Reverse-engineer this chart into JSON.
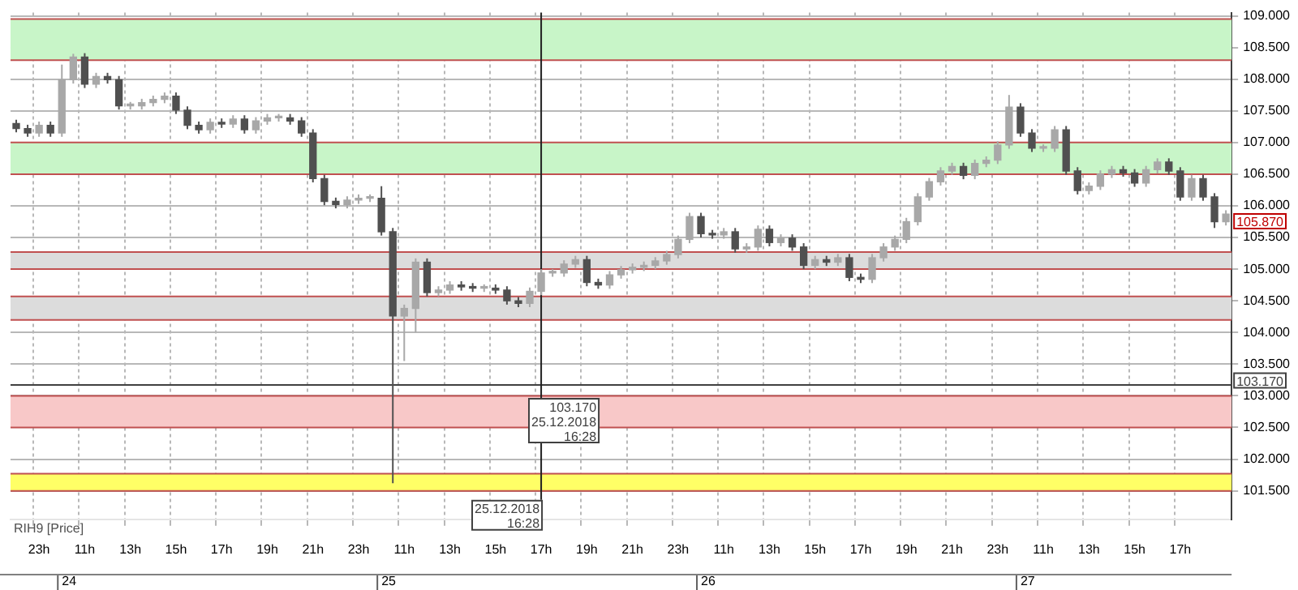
{
  "chart_data": {
    "type": "candlestick",
    "categories": [
      null,
      null,
      "23h",
      null,
      null,
      null,
      "11h",
      null,
      null,
      null,
      "13h",
      null,
      null,
      null,
      "15h",
      null,
      null,
      null,
      "17h",
      null,
      null,
      null,
      "19h",
      null,
      null,
      null,
      "21h",
      null,
      null,
      null,
      "23h",
      null,
      null,
      null,
      "11h",
      null,
      null,
      null,
      "13h",
      null,
      null,
      null,
      "15h",
      null,
      null,
      null,
      "17h",
      null,
      null,
      null,
      "19h",
      null,
      null,
      null,
      "21h",
      null,
      null,
      null,
      "23h",
      null,
      null,
      null,
      "11h",
      null,
      null,
      null,
      "13h",
      null,
      null,
      null,
      "15h",
      null,
      null,
      null,
      "17h",
      null,
      null,
      null,
      "19h",
      null,
      null,
      null,
      "21h",
      null,
      null,
      null,
      "23h",
      null,
      null,
      null,
      "11h",
      null,
      null,
      null,
      "13h",
      null,
      null,
      null,
      "15h",
      null,
      null,
      null,
      "17h",
      null,
      null,
      null,
      null
    ],
    "series": [
      {
        "name": "RIH9 [Price]",
        "colors": [
          "#505050",
          "#505050",
          "#a8a8a8",
          "#505050",
          "#a8a8a8",
          "#a8a8a8",
          "#505050",
          "#a8a8a8",
          "#505050",
          "#505050",
          "#a8a8a8",
          "#a8a8a8",
          "#a8a8a8",
          "#a8a8a8",
          "#505050",
          "#505050",
          "#505050",
          "#a8a8a8",
          "#505050",
          "#a8a8a8",
          "#505050",
          "#a8a8a8",
          "#a8a8a8",
          "#a8a8a8",
          "#505050",
          "#505050",
          "#505050",
          "#505050",
          "#505050",
          "#a8a8a8",
          "#a8a8a8",
          "#a8a8a8",
          "#505050",
          "#505050",
          "#a8a8a8",
          "#a8a8a8",
          "#505050",
          "#a8a8a8",
          "#a8a8a8",
          "#505050",
          "#505050",
          "#a8a8a8",
          "#505050",
          "#505050",
          "#505050",
          "#a8a8a8",
          "#a8a8a8",
          "#a8a8a8",
          "#a8a8a8",
          "#a8a8a8",
          "#505050",
          "#505050",
          "#a8a8a8",
          "#a8a8a8",
          "#a8a8a8",
          "#a8a8a8",
          "#a8a8a8",
          "#a8a8a8",
          "#a8a8a8",
          "#a8a8a8",
          "#505050",
          "#505050",
          "#a8a8a8",
          "#505050",
          "#a8a8a8",
          "#a8a8a8",
          "#505050",
          "#a8a8a8",
          "#505050",
          "#505050",
          "#a8a8a8",
          "#505050",
          "#a8a8a8",
          "#505050",
          "#505050",
          "#a8a8a8",
          "#a8a8a8",
          "#a8a8a8",
          "#a8a8a8",
          "#a8a8a8",
          "#a8a8a8",
          "#a8a8a8",
          "#a8a8a8",
          "#505050",
          "#a8a8a8",
          "#a8a8a8",
          "#a8a8a8",
          "#a8a8a8",
          "#505050",
          "#505050",
          "#a8a8a8",
          "#a8a8a8",
          "#505050",
          "#505050",
          "#a8a8a8",
          "#a8a8a8",
          "#a8a8a8",
          "#505050",
          "#505050",
          "#a8a8a8",
          "#a8a8a8",
          "#505050",
          "#505050",
          "#a8a8a8",
          "#505050",
          "#505050",
          "#a8a8a8"
        ],
        "ohlc": [
          [
            107.3,
            107.36,
            107.16,
            107.22
          ],
          [
            107.22,
            107.28,
            107.09,
            107.15
          ],
          [
            107.15,
            107.33,
            107.09,
            107.27
          ],
          [
            107.27,
            107.33,
            107.09,
            107.15
          ],
          [
            107.15,
            108.23,
            107.09,
            107.99
          ],
          [
            107.99,
            108.4,
            107.93,
            108.35
          ],
          [
            108.35,
            108.41,
            107.86,
            107.92
          ],
          [
            107.92,
            108.1,
            107.86,
            108.04
          ],
          [
            108.04,
            108.1,
            107.93,
            107.99
          ],
          [
            107.99,
            108.05,
            107.52,
            107.58
          ],
          [
            107.58,
            107.64,
            107.52,
            107.58
          ],
          [
            107.58,
            107.69,
            107.52,
            107.63
          ],
          [
            107.63,
            107.74,
            107.57,
            107.68
          ],
          [
            107.68,
            107.79,
            107.62,
            107.73
          ],
          [
            107.73,
            107.79,
            107.45,
            107.51
          ],
          [
            107.51,
            107.57,
            107.21,
            107.27
          ],
          [
            107.27,
            107.33,
            107.14,
            107.2
          ],
          [
            107.2,
            107.38,
            107.14,
            107.32
          ],
          [
            107.32,
            107.38,
            107.23,
            107.29
          ],
          [
            107.29,
            107.43,
            107.23,
            107.37
          ],
          [
            107.37,
            107.43,
            107.14,
            107.2
          ],
          [
            107.2,
            107.4,
            107.14,
            107.34
          ],
          [
            107.34,
            107.45,
            107.28,
            107.39
          ],
          [
            107.39,
            107.45,
            107.33,
            107.39
          ],
          [
            107.39,
            107.45,
            107.28,
            107.34
          ],
          [
            107.34,
            107.4,
            107.09,
            107.15
          ],
          [
            107.15,
            107.21,
            106.37,
            106.43
          ],
          [
            106.43,
            106.49,
            106.01,
            106.07
          ],
          [
            106.07,
            106.13,
            105.96,
            106.02
          ],
          [
            106.02,
            106.15,
            105.96,
            106.09
          ],
          [
            106.09,
            106.18,
            106.03,
            106.12
          ],
          [
            106.12,
            106.18,
            106.06,
            106.12
          ],
          [
            106.12,
            106.31,
            105.53,
            105.59
          ],
          [
            105.59,
            105.65,
            101.62,
            104.26
          ],
          [
            104.26,
            104.44,
            103.55,
            104.38
          ],
          [
            104.38,
            105.17,
            104.0,
            105.11
          ],
          [
            105.11,
            105.17,
            104.57,
            104.63
          ],
          [
            104.63,
            104.73,
            104.57,
            104.67
          ],
          [
            104.67,
            104.81,
            104.61,
            104.75
          ],
          [
            104.75,
            104.81,
            104.66,
            104.72
          ],
          [
            104.72,
            104.78,
            104.64,
            104.7
          ],
          [
            104.7,
            104.76,
            104.64,
            104.7
          ],
          [
            104.7,
            104.76,
            104.61,
            104.67
          ],
          [
            104.67,
            104.73,
            104.44,
            104.5
          ],
          [
            104.5,
            104.56,
            104.4,
            104.46
          ],
          [
            104.46,
            104.71,
            104.4,
            104.65
          ],
          [
            104.65,
            105.0,
            104.59,
            104.94
          ],
          [
            104.94,
            105.0,
            104.88,
            104.94
          ],
          [
            104.94,
            105.14,
            104.88,
            105.08
          ],
          [
            105.08,
            105.21,
            105.02,
            105.15
          ],
          [
            105.15,
            105.21,
            104.73,
            104.79
          ],
          [
            104.79,
            104.85,
            104.69,
            104.75
          ],
          [
            104.75,
            104.97,
            104.69,
            104.91
          ],
          [
            104.91,
            105.05,
            104.85,
            104.99
          ],
          [
            104.99,
            105.09,
            104.93,
            105.03
          ],
          [
            105.03,
            105.12,
            104.97,
            105.06
          ],
          [
            105.06,
            105.19,
            105.0,
            105.13
          ],
          [
            105.13,
            105.29,
            105.07,
            105.23
          ],
          [
            105.23,
            105.53,
            105.17,
            105.47
          ],
          [
            105.47,
            105.89,
            105.41,
            105.83
          ],
          [
            105.83,
            105.89,
            105.5,
            105.56
          ],
          [
            105.56,
            105.62,
            105.48,
            105.54
          ],
          [
            105.54,
            105.65,
            105.48,
            105.59
          ],
          [
            105.59,
            105.65,
            105.26,
            105.32
          ],
          [
            105.32,
            105.41,
            105.26,
            105.35
          ],
          [
            105.35,
            105.69,
            105.29,
            105.63
          ],
          [
            105.63,
            105.69,
            105.36,
            105.42
          ],
          [
            105.42,
            105.55,
            105.36,
            105.49
          ],
          [
            105.49,
            105.55,
            105.29,
            105.35
          ],
          [
            105.35,
            105.41,
            105.0,
            105.06
          ],
          [
            105.06,
            105.21,
            105.0,
            105.15
          ],
          [
            105.15,
            105.21,
            105.05,
            105.11
          ],
          [
            105.11,
            105.24,
            105.05,
            105.18
          ],
          [
            105.18,
            105.24,
            104.81,
            104.87
          ],
          [
            104.87,
            104.93,
            104.78,
            104.84
          ],
          [
            104.84,
            105.24,
            104.78,
            105.18
          ],
          [
            105.18,
            105.41,
            105.12,
            105.35
          ],
          [
            105.35,
            105.53,
            105.29,
            105.47
          ],
          [
            105.47,
            105.81,
            105.41,
            105.75
          ],
          [
            105.75,
            106.2,
            105.69,
            106.14
          ],
          [
            106.14,
            106.44,
            106.08,
            106.38
          ],
          [
            106.38,
            106.61,
            106.32,
            106.55
          ],
          [
            106.55,
            106.68,
            106.49,
            106.62
          ],
          [
            106.62,
            106.68,
            106.42,
            106.48
          ],
          [
            106.48,
            106.73,
            106.42,
            106.67
          ],
          [
            106.67,
            106.78,
            106.61,
            106.72
          ],
          [
            106.72,
            107.02,
            106.66,
            106.96
          ],
          [
            106.96,
            107.75,
            106.9,
            107.56
          ],
          [
            107.56,
            107.62,
            107.09,
            107.15
          ],
          [
            107.15,
            107.21,
            106.85,
            106.91
          ],
          [
            106.91,
            106.97,
            106.85,
            106.91
          ],
          [
            106.91,
            107.26,
            106.85,
            107.2
          ],
          [
            107.2,
            107.26,
            106.49,
            106.55
          ],
          [
            106.55,
            106.61,
            106.18,
            106.24
          ],
          [
            106.24,
            106.37,
            106.18,
            106.31
          ],
          [
            106.31,
            106.56,
            106.25,
            106.5
          ],
          [
            106.5,
            106.63,
            106.44,
            106.57
          ],
          [
            106.57,
            106.63,
            106.46,
            106.52
          ],
          [
            106.52,
            106.58,
            106.3,
            106.36
          ],
          [
            106.36,
            106.63,
            106.3,
            106.57
          ],
          [
            106.57,
            106.75,
            106.51,
            106.69
          ],
          [
            106.69,
            106.75,
            106.49,
            106.55
          ],
          [
            106.55,
            106.61,
            106.08,
            106.14
          ],
          [
            106.14,
            106.49,
            106.08,
            106.43
          ],
          [
            106.43,
            106.49,
            106.08,
            106.14
          ],
          [
            106.14,
            106.2,
            105.65,
            105.75
          ],
          [
            105.75,
            105.93,
            105.69,
            105.87
          ]
        ]
      }
    ],
    "ylim": [
      101.05,
      109.05
    ],
    "yticks": [
      {
        "value": 101.5,
        "label": "101.500"
      },
      {
        "value": 102,
        "label": "102.000"
      },
      {
        "value": 102.5,
        "label": "102.500"
      },
      {
        "value": 103,
        "label": "103.000"
      },
      {
        "value": 103.5,
        "label": "103.500"
      },
      {
        "value": 104,
        "label": "104.000"
      },
      {
        "value": 104.5,
        "label": "104.500"
      },
      {
        "value": 105,
        "label": "105.000"
      },
      {
        "value": 105.5,
        "label": "105.500"
      },
      {
        "value": 106,
        "label": "106.000"
      },
      {
        "value": 106.5,
        "label": "106.500"
      },
      {
        "value": 107,
        "label": "107.000"
      },
      {
        "value": 107.5,
        "label": "107.500"
      },
      {
        "value": 108,
        "label": "108.000"
      },
      {
        "value": 108.5,
        "label": "108.500"
      },
      {
        "value": 109,
        "label": "109.000"
      }
    ],
    "bands": [
      {
        "axis": "y",
        "from": 108.3,
        "to": 108.95,
        "color": "#c8f5c8"
      },
      {
        "axis": "y",
        "from": 106.5,
        "to": 107.0,
        "color": "#c8f5c8"
      },
      {
        "axis": "y",
        "from": 105.0,
        "to": 105.27,
        "color": "#dcdcdc"
      },
      {
        "axis": "y",
        "from": 104.2,
        "to": 104.57,
        "color": "#dcdcdc"
      },
      {
        "axis": "y",
        "from": 102.5,
        "to": 103.0,
        "color": "#f8c8c8"
      },
      {
        "axis": "y",
        "from": 101.5,
        "to": 101.77,
        "color": "#ffff66"
      }
    ],
    "ref_lines": [
      {
        "axis": "y",
        "value": 103.17,
        "label": "103.170",
        "color": "#404040"
      }
    ],
    "annotations": [
      "24",
      "25",
      "26",
      "27",
      "25.12.2018 16:28",
      "105.870"
    ],
    "grid": true,
    "legend": "bottom left"
  }
}
